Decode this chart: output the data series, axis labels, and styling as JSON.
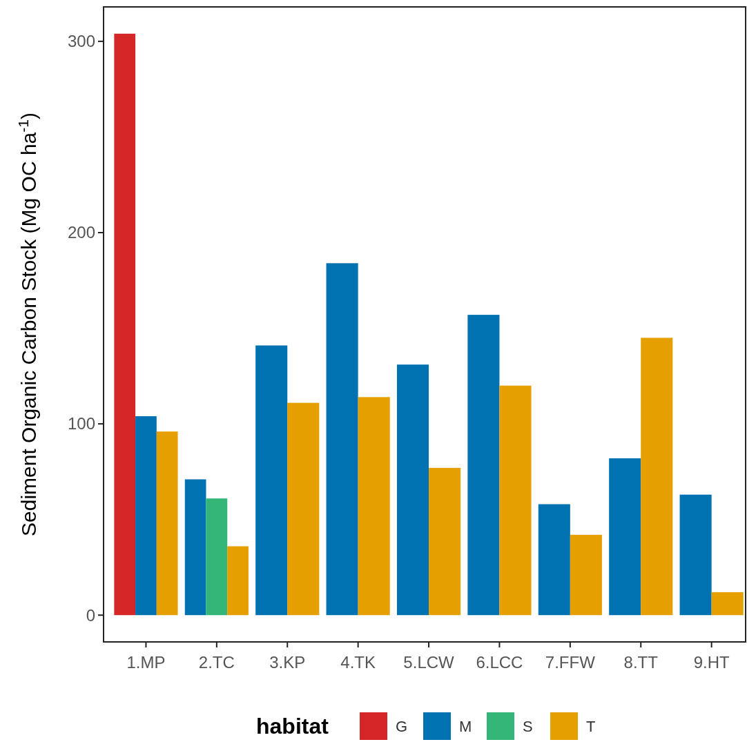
{
  "chart_data": {
    "type": "bar",
    "ylabel": "Sediment Organic Carbon Stock (Mg OC ha$^{-1}$)",
    "legend_title": "habitat",
    "categories": [
      "1.MP",
      "2.TC",
      "3.KP",
      "4.TK",
      "5.LCW",
      "6.LCC",
      "7.FFW",
      "8.TT",
      "9.HT"
    ],
    "series": [
      {
        "name": "G",
        "color": "#d62728",
        "values": [
          304,
          null,
          null,
          null,
          null,
          null,
          null,
          null,
          null
        ]
      },
      {
        "name": "M",
        "color": "#0072b2",
        "values": [
          104,
          71,
          141,
          184,
          131,
          157,
          58,
          82,
          63
        ]
      },
      {
        "name": "S",
        "color": "#34b679",
        "values": [
          null,
          61,
          null,
          null,
          null,
          null,
          null,
          null,
          null
        ]
      },
      {
        "name": "T",
        "color": "#e69f00",
        "values": [
          96,
          36,
          111,
          114,
          77,
          120,
          42,
          145,
          12
        ]
      }
    ],
    "ylim": [
      -14,
      318
    ],
    "yticks": [
      0,
      100,
      200,
      300
    ],
    "grid": false,
    "legend": "bottom"
  }
}
